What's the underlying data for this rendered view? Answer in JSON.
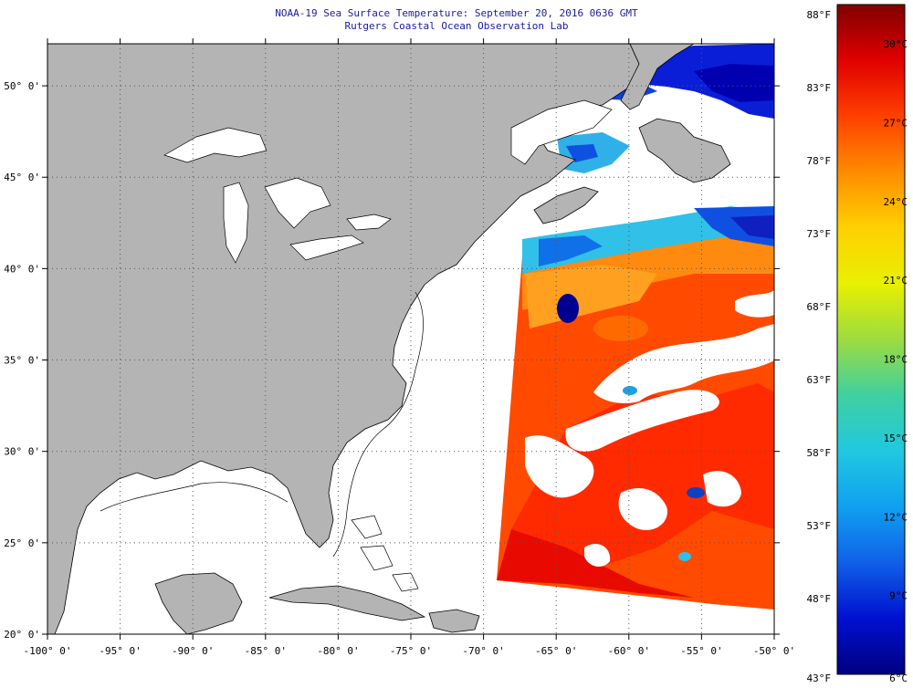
{
  "header": {
    "title_line1": "NOAA-19 Sea Surface Temperature:  September 20, 2016 0636 GMT",
    "title_line2": "Rutgers Coastal Ocean Observation Lab"
  },
  "map": {
    "lon_range": [
      -100,
      -50
    ],
    "lat_range": [
      20,
      52.3
    ],
    "lon_ticks": [
      {
        "lon": -100,
        "label": "-100° 0'"
      },
      {
        "lon": -95,
        "label": "-95° 0'"
      },
      {
        "lon": -90,
        "label": "-90° 0'"
      },
      {
        "lon": -85,
        "label": "-85° 0'"
      },
      {
        "lon": -80,
        "label": "-80° 0'"
      },
      {
        "lon": -75,
        "label": "-75° 0'"
      },
      {
        "lon": -70,
        "label": "-70° 0'"
      },
      {
        "lon": -65,
        "label": "-65° 0'"
      },
      {
        "lon": -60,
        "label": "-60° 0'"
      },
      {
        "lon": -55,
        "label": "-55° 0'"
      },
      {
        "lon": -50,
        "label": "-50° 0'"
      }
    ],
    "lat_ticks": [
      {
        "lat": 50,
        "label": "50° 0'"
      },
      {
        "lat": 45,
        "label": "45° 0'"
      },
      {
        "lat": 40,
        "label": "40° 0'"
      },
      {
        "lat": 35,
        "label": "35° 0'"
      },
      {
        "lat": 30,
        "label": "30° 0'"
      },
      {
        "lat": 25,
        "label": "25° 0'"
      },
      {
        "lat": 20,
        "label": "20° 0'"
      }
    ],
    "colors": {
      "land": "#b4b4b4",
      "water": "#ffffff",
      "coast": "#000000",
      "grid": "#555555"
    }
  },
  "colorbar": {
    "f_labels": [
      {
        "value": 88,
        "label": "88°F"
      },
      {
        "value": 83,
        "label": "83°F"
      },
      {
        "value": 78,
        "label": "78°F"
      },
      {
        "value": 73,
        "label": "73°F"
      },
      {
        "value": 68,
        "label": "68°F"
      },
      {
        "value": 63,
        "label": "63°F"
      },
      {
        "value": 58,
        "label": "58°F"
      },
      {
        "value": 53,
        "label": "53°F"
      },
      {
        "value": 48,
        "label": "48°F"
      },
      {
        "value": 43,
        "label": "43°F"
      }
    ],
    "c_labels": [
      {
        "value": 30,
        "label": "30°C"
      },
      {
        "value": 27,
        "label": "27°C"
      },
      {
        "value": 24,
        "label": "24°C"
      },
      {
        "value": 21,
        "label": "21°C"
      },
      {
        "value": 18,
        "label": "18°C"
      },
      {
        "value": 15,
        "label": "15°C"
      },
      {
        "value": 12,
        "label": "12°C"
      },
      {
        "value": 9,
        "label": "9°C"
      },
      {
        "value": 6,
        "label": "6°C"
      }
    ],
    "range_c": [
      6,
      31.5
    ],
    "gradient": [
      "#7f0000",
      "#e00000",
      "#ff4000",
      "#ff8c00",
      "#ffd000",
      "#e8f000",
      "#9cdc40",
      "#40d0a0",
      "#20c8e0",
      "#10a0f0",
      "#1060e8",
      "#0010d0",
      "#000080"
    ]
  }
}
